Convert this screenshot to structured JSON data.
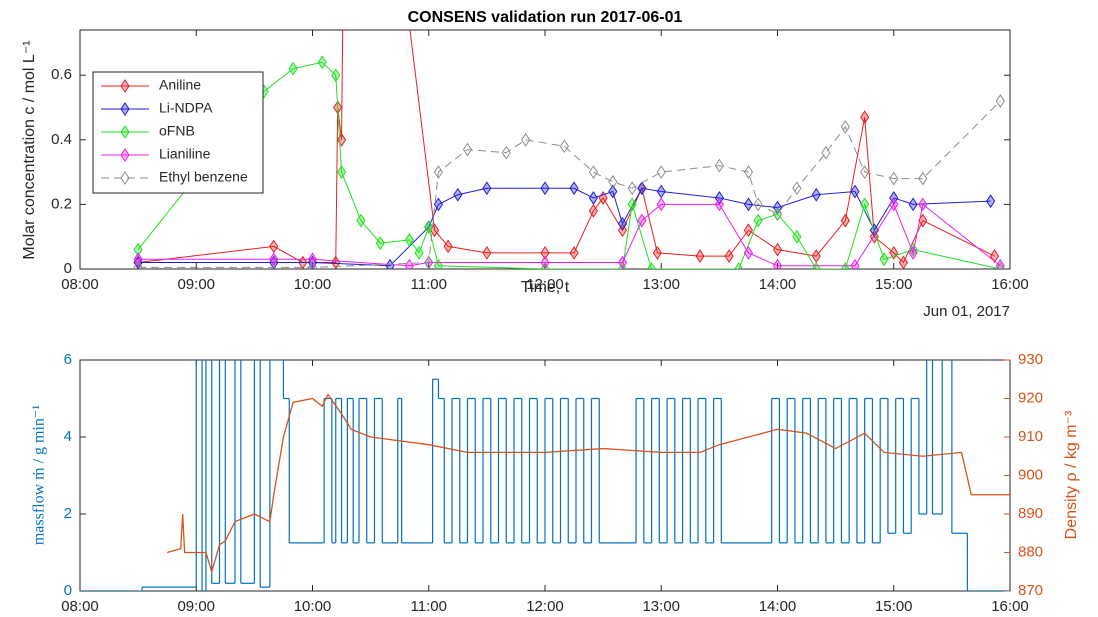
{
  "chart_data": [
    {
      "type": "line",
      "title": "CONSENS validation run 2017-06-01",
      "y_label": "Molar concentration c / mol L⁻¹",
      "x_label": "Time, t",
      "annotation": "Jun 01, 2017",
      "xlim": [
        "08:00",
        "16:00"
      ],
      "xticks": [
        "08:00",
        "09:00",
        "10:00",
        "11:00",
        "12:00",
        "13:00",
        "14:00",
        "15:00",
        "16:00"
      ],
      "ylim": [
        0,
        0.74
      ],
      "yticks": [
        0,
        0.2,
        0.4,
        0.6
      ],
      "legend": "upper left",
      "series": [
        {
          "name": "Aniline",
          "color": "#e8201f",
          "marker": "diamond",
          "dash": false,
          "x": [
            "08:30",
            "09:40",
            "09:55",
            "10:12",
            "10:13",
            "10:15",
            "10:16",
            "10:45",
            "11:03",
            "11:10",
            "11:30",
            "12:00",
            "12:15",
            "12:25",
            "12:30",
            "12:40",
            "12:50",
            "12:58",
            "13:20",
            "13:35",
            "13:45",
            "14:00",
            "14:20",
            "14:35",
            "14:45",
            "14:50",
            "15:00",
            "15:05",
            "15:15",
            "15:52"
          ],
          "values": [
            0.02,
            0.07,
            0.02,
            0.02,
            0.5,
            0.4,
            1.0,
            1.0,
            0.12,
            0.07,
            0.05,
            0.05,
            0.05,
            0.18,
            0.22,
            0.12,
            0.25,
            0.05,
            0.04,
            0.04,
            0.12,
            0.06,
            0.04,
            0.15,
            0.47,
            0.1,
            0.05,
            0.02,
            0.15,
            0.04
          ]
        },
        {
          "name": "Li-NDPA",
          "color": "#1f1fd6",
          "marker": "diamond",
          "dash": false,
          "x": [
            "08:30",
            "09:40",
            "10:00",
            "10:40",
            "11:00",
            "11:05",
            "11:15",
            "11:30",
            "12:00",
            "12:15",
            "12:25",
            "12:35",
            "12:40",
            "12:50",
            "13:00",
            "13:30",
            "13:45",
            "14:00",
            "14:20",
            "14:40",
            "14:50",
            "15:00",
            "15:10",
            "15:50"
          ],
          "values": [
            0.02,
            0.02,
            0.02,
            0.01,
            0.13,
            0.2,
            0.23,
            0.25,
            0.25,
            0.25,
            0.22,
            0.24,
            0.14,
            0.25,
            0.24,
            0.22,
            0.2,
            0.19,
            0.23,
            0.24,
            0.12,
            0.22,
            0.2,
            0.21
          ]
        },
        {
          "name": "oFNB",
          "color": "#22e022",
          "marker": "diamond",
          "dash": false,
          "x": [
            "08:30",
            "09:35",
            "09:50",
            "10:05",
            "10:12",
            "10:15",
            "10:25",
            "10:35",
            "10:50",
            "10:55",
            "11:00",
            "11:05",
            "12:00",
            "12:40",
            "12:45",
            "12:55",
            "13:40",
            "13:50",
            "14:00",
            "14:10",
            "14:20",
            "14:35",
            "14:45",
            "14:55",
            "15:10",
            "15:55"
          ],
          "values": [
            0.06,
            0.55,
            0.62,
            0.64,
            0.6,
            0.3,
            0.15,
            0.08,
            0.09,
            0.05,
            0.13,
            0.01,
            0,
            0,
            0.2,
            0,
            0,
            0.15,
            0.17,
            0.1,
            0,
            0,
            0.2,
            0.03,
            0.06,
            0
          ]
        },
        {
          "name": "Lianiline",
          "color": "#e81fe8",
          "marker": "diamond",
          "dash": false,
          "x": [
            "08:30",
            "09:40",
            "10:00",
            "10:50",
            "11:00",
            "12:00",
            "12:40",
            "12:50",
            "13:00",
            "13:30",
            "13:45",
            "14:00",
            "14:40",
            "15:00",
            "15:10",
            "15:15",
            "15:55"
          ],
          "values": [
            0.03,
            0.03,
            0.03,
            0.01,
            0.02,
            0.02,
            0.02,
            0.15,
            0.2,
            0.2,
            0.05,
            0.01,
            0.01,
            0.2,
            0.05,
            0.2,
            0.01
          ]
        },
        {
          "name": "Ethyl benzene",
          "color": "#8c8c8c",
          "marker": "diamond-open",
          "dash": true,
          "x": [
            "08:30",
            "10:00",
            "11:00",
            "11:05",
            "11:20",
            "11:40",
            "11:50",
            "12:10",
            "12:25",
            "12:35",
            "12:45",
            "13:00",
            "13:30",
            "13:45",
            "13:50",
            "14:00",
            "14:10",
            "14:25",
            "14:35",
            "14:45",
            "15:00",
            "15:15",
            "15:55"
          ],
          "values": [
            0.005,
            0.005,
            0.02,
            0.3,
            0.37,
            0.36,
            0.4,
            0.38,
            0.3,
            0.27,
            0.25,
            0.3,
            0.32,
            0.3,
            0.2,
            0.17,
            0.25,
            0.36,
            0.44,
            0.3,
            0.28,
            0.28,
            0.52
          ]
        }
      ]
    },
    {
      "type": "step-dual",
      "y_label": "massflow ṁ / g min⁻¹",
      "y2_label": "Density ρ / kg m⁻³",
      "xlim": [
        "08:00",
        "16:00"
      ],
      "xticks": [
        "08:00",
        "09:00",
        "10:00",
        "11:00",
        "12:00",
        "13:00",
        "14:00",
        "15:00",
        "16:00"
      ],
      "ylim": [
        0,
        6
      ],
      "yticks": [
        0,
        2,
        4,
        6
      ],
      "y2lim": [
        870,
        930
      ],
      "y2ticks": [
        870,
        880,
        890,
        900,
        910,
        920,
        930
      ],
      "series": [
        {
          "name": "massflow",
          "color": "#0072bd",
          "step": true,
          "x": [
            "08:00",
            "08:30",
            "08:32",
            "08:58",
            "09:00",
            "09:03",
            "09:05",
            "09:08",
            "09:12",
            "09:15",
            "09:20",
            "09:23",
            "09:30",
            "09:33",
            "09:37",
            "09:38",
            "09:45",
            "09:48",
            "10:05",
            "10:06",
            "10:10",
            "10:12",
            "10:15",
            "10:18",
            "10:21",
            "10:24",
            "10:28",
            "10:32",
            "10:36",
            "10:44",
            "10:46",
            "11:00",
            "11:02",
            "11:05",
            "11:08",
            "11:12",
            "11:16",
            "11:20",
            "11:24",
            "11:28",
            "11:32",
            "11:36",
            "11:40",
            "11:44",
            "11:48",
            "11:52",
            "11:56",
            "12:00",
            "12:04",
            "12:08",
            "12:12",
            "12:16",
            "12:20",
            "12:24",
            "12:28",
            "12:47",
            "12:51",
            "12:55",
            "12:59",
            "13:03",
            "13:07",
            "13:11",
            "13:15",
            "13:19",
            "13:23",
            "13:27",
            "13:31",
            "13:57",
            "14:01",
            "14:05",
            "14:09",
            "14:13",
            "14:17",
            "14:21",
            "14:25",
            "14:29",
            "14:33",
            "14:37",
            "14:41",
            "14:45",
            "14:49",
            "14:53",
            "14:57",
            "15:01",
            "15:05",
            "15:09",
            "15:13",
            "15:17",
            "15:20",
            "15:25",
            "15:30",
            "15:38",
            "16:00"
          ],
          "values": [
            0,
            0,
            0.1,
            0.1,
            6.5,
            0,
            6.5,
            0.2,
            6.5,
            0.2,
            6.5,
            0.2,
            6.5,
            0.1,
            0.1,
            6,
            5,
            1.25,
            1.25,
            5,
            1.25,
            5,
            1.25,
            5,
            1.25,
            5,
            1.25,
            5,
            1.25,
            5,
            1.25,
            1.25,
            5.5,
            5,
            1.25,
            5,
            1.25,
            5,
            1.25,
            5,
            1.25,
            5,
            1.25,
            5,
            1.25,
            5,
            1.25,
            5,
            1.25,
            5,
            1.25,
            5,
            1.25,
            5,
            1.25,
            5,
            1.25,
            5,
            1.25,
            5,
            1.25,
            5,
            1.25,
            5,
            1.25,
            5,
            1.25,
            5,
            1.25,
            5,
            1.25,
            5,
            1.25,
            5,
            1.25,
            5,
            1.25,
            5,
            1.25,
            5,
            1.25,
            5,
            1.5,
            5,
            1.5,
            5,
            2,
            6.5,
            2,
            6.5,
            1.5,
            0,
            0
          ]
        },
        {
          "name": "Density",
          "color": "#d95319",
          "axis": "y2",
          "step": false,
          "x": [
            "08:45",
            "08:52",
            "08:53",
            "08:54",
            "09:05",
            "09:08",
            "09:12",
            "09:15",
            "09:20",
            "09:30",
            "09:38",
            "09:40",
            "09:45",
            "09:50",
            "10:00",
            "10:05",
            "10:08",
            "10:15",
            "10:20",
            "10:30",
            "11:00",
            "11:20",
            "12:00",
            "12:30",
            "13:00",
            "13:20",
            "13:30",
            "13:45",
            "14:00",
            "14:15",
            "14:30",
            "14:45",
            "14:55",
            "15:15",
            "15:35",
            "15:40",
            "16:00"
          ],
          "values": [
            880,
            881,
            890,
            880,
            880,
            875,
            882,
            883,
            888,
            890,
            888,
            895,
            910,
            919,
            920,
            918,
            921,
            916,
            912,
            910,
            908,
            906,
            906,
            907,
            906,
            906,
            908,
            910,
            912,
            911,
            907,
            911,
            906,
            905,
            906,
            895,
            895
          ]
        }
      ]
    }
  ]
}
